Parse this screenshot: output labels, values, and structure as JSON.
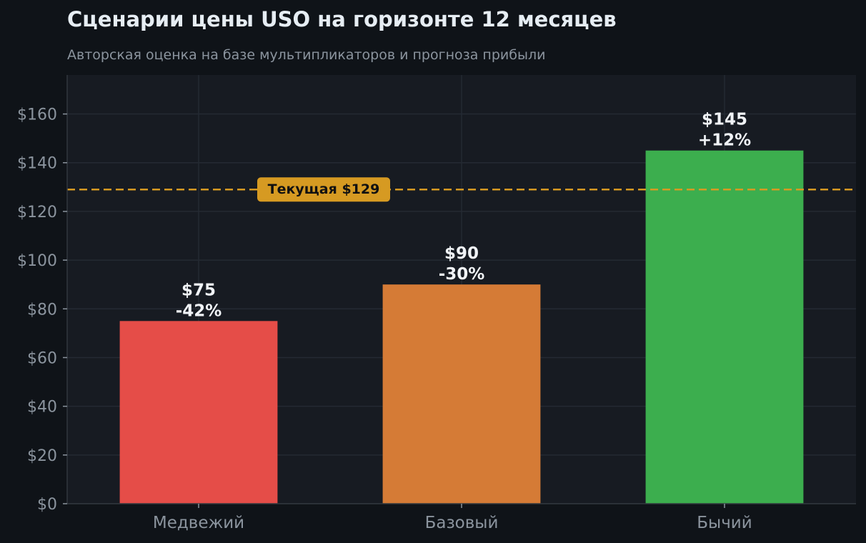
{
  "header": {
    "title": "Сценарии цены USO на горизонте 12 месяцев",
    "subtitle": "Авторская оценка на базе мультипликаторов и прогноза прибыли"
  },
  "chart_data": {
    "type": "bar",
    "categories": [
      "Медвежий",
      "Базовый",
      "Бычий"
    ],
    "values": [
      75,
      90,
      145
    ],
    "value_labels": [
      "$75",
      "$90",
      "$145"
    ],
    "change_labels": [
      "-42%",
      "-30%",
      "+12%"
    ],
    "colors": [
      "#e54d48",
      "#d57b36",
      "#3cae4e"
    ],
    "y_ticks": [
      0,
      20,
      40,
      60,
      80,
      100,
      120,
      140,
      160
    ],
    "y_tick_labels": [
      "$0",
      "$20",
      "$40",
      "$60",
      "$80",
      "$100",
      "$120",
      "$140",
      "$160"
    ],
    "ylim": [
      0,
      176
    ],
    "grid": true,
    "reference_line": {
      "value": 129,
      "label": "Текущая $129",
      "color": "#d69a22"
    },
    "colors_theme": {
      "background": "#0f1318",
      "plot_background": "#171b22",
      "grid": "#242a33",
      "text_muted": "#8b949e"
    }
  }
}
